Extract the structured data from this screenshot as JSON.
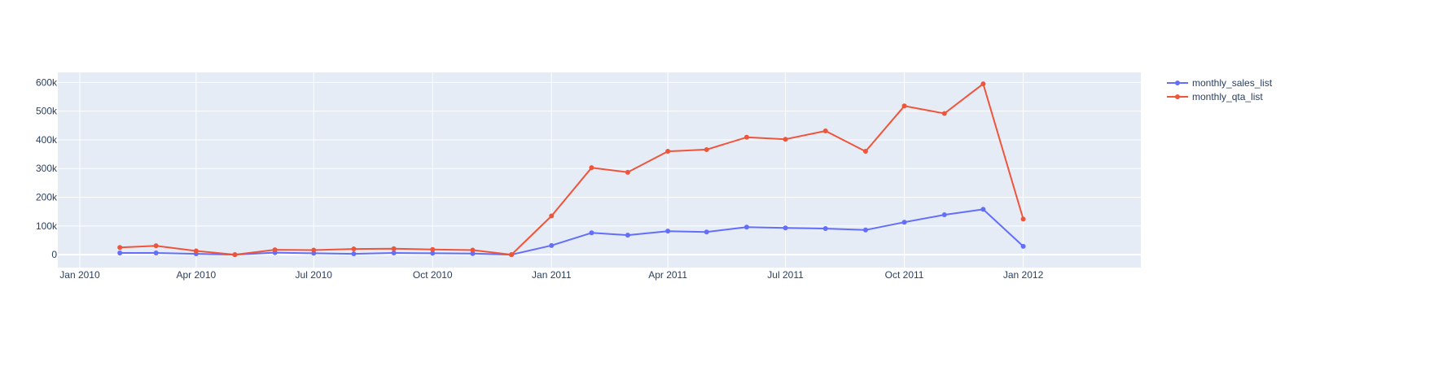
{
  "chart_data": {
    "type": "line",
    "title": "",
    "xlabel": "",
    "ylabel": "",
    "x": [
      "2010-02-01",
      "2010-03-01",
      "2010-04-01",
      "2010-05-01",
      "2010-06-01",
      "2010-07-01",
      "2010-08-01",
      "2010-09-01",
      "2010-10-01",
      "2010-11-01",
      "2010-12-01",
      "2011-01-01",
      "2011-02-01",
      "2011-03-01",
      "2011-04-01",
      "2011-05-01",
      "2011-06-01",
      "2011-07-01",
      "2011-08-01",
      "2011-09-01",
      "2011-10-01",
      "2011-11-01",
      "2011-12-01",
      "2012-01-01"
    ],
    "series": [
      {
        "name": "monthly_sales_list",
        "color": "#636efa",
        "values": [
          6000,
          6000,
          3000,
          0,
          7000,
          5000,
          3000,
          6000,
          5000,
          4000,
          0,
          32000,
          76000,
          68000,
          82000,
          79000,
          96000,
          93000,
          91000,
          86000,
          113000,
          139000,
          158000,
          29000
        ]
      },
      {
        "name": "monthly_qta_list",
        "color": "#ef553b",
        "values": [
          25000,
          31000,
          13000,
          0,
          17000,
          16000,
          20000,
          21000,
          18000,
          16000,
          0,
          135000,
          303000,
          287000,
          360000,
          366000,
          409000,
          402000,
          431000,
          360000,
          518000,
          492000,
          595000,
          124000
        ]
      }
    ],
    "xlim": [
      "2009-12-15",
      "2012-04-01"
    ],
    "ylim": [
      -45000,
      635000
    ],
    "x_ticks": [
      {
        "value": "2010-01-01",
        "label": "Jan 2010"
      },
      {
        "value": "2010-04-01",
        "label": "Apr 2010"
      },
      {
        "value": "2010-07-01",
        "label": "Jul 2010"
      },
      {
        "value": "2010-10-01",
        "label": "Oct 2010"
      },
      {
        "value": "2011-01-01",
        "label": "Jan 2011"
      },
      {
        "value": "2011-04-01",
        "label": "Apr 2011"
      },
      {
        "value": "2011-07-01",
        "label": "Jul 2011"
      },
      {
        "value": "2011-10-01",
        "label": "Oct 2011"
      },
      {
        "value": "2012-01-01",
        "label": "Jan 2012"
      }
    ],
    "y_ticks": [
      {
        "value": 0,
        "label": "0"
      },
      {
        "value": 100000,
        "label": "100k"
      },
      {
        "value": 200000,
        "label": "200k"
      },
      {
        "value": 300000,
        "label": "300k"
      },
      {
        "value": 400000,
        "label": "400k"
      },
      {
        "value": 500000,
        "label": "500k"
      },
      {
        "value": 600000,
        "label": "600k"
      }
    ],
    "grid": true,
    "legend": "top-right",
    "plot_bg": "#e5ecf6",
    "grid_color": "#ffffff",
    "text_color": "#2a3f5f"
  }
}
